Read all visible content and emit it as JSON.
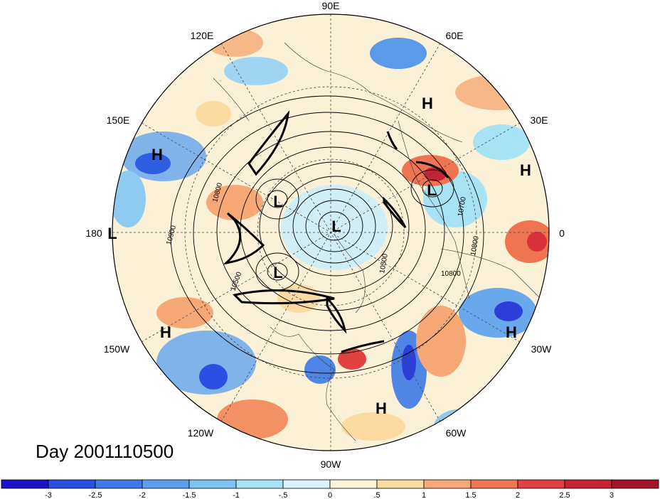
{
  "day_label": "Day 2001110500",
  "longitude_labels": [
    {
      "text": "90E",
      "lon": 90
    },
    {
      "text": "60E",
      "lon": 60
    },
    {
      "text": "120E",
      "lon": 120
    },
    {
      "text": "30E",
      "lon": 30
    },
    {
      "text": "150E",
      "lon": 150
    },
    {
      "text": "0",
      "lon": 0
    },
    {
      "text": "180",
      "lon": 180
    },
    {
      "text": "30W",
      "lon": -30
    },
    {
      "text": "150W",
      "lon": -150
    },
    {
      "text": "60W",
      "lon": -60
    },
    {
      "text": "120W",
      "lon": -120
    },
    {
      "text": "90W",
      "lon": -90
    }
  ],
  "pressure_centers": [
    {
      "type": "H",
      "text": "H"
    },
    {
      "type": "H",
      "text": "H"
    },
    {
      "type": "H",
      "text": "H"
    },
    {
      "type": "H",
      "text": "H"
    },
    {
      "type": "H",
      "text": "H"
    },
    {
      "type": "H",
      "text": "H"
    },
    {
      "type": "L",
      "text": "L"
    },
    {
      "type": "L",
      "text": "L"
    },
    {
      "type": "L",
      "text": "L"
    },
    {
      "type": "L",
      "text": "L"
    },
    {
      "type": "L",
      "text": "L"
    }
  ],
  "contour_labels": [
    "10800",
    "10900",
    "10500",
    "10700",
    "10800",
    "10800",
    "10500"
  ],
  "colorbar": {
    "tick_labels": [
      "-3",
      "-2.5",
      "-2",
      "-1.5",
      "-1",
      "-.5",
      "0",
      ".5",
      "1",
      "1.5",
      "2",
      "2.5",
      "3"
    ],
    "colors": [
      "#1a14c8",
      "#2b4fe0",
      "#3f7ae8",
      "#5aa0ec",
      "#7cc3f2",
      "#a7e2f5",
      "#d8f4f9",
      "#fbf5d8",
      "#fbdba1",
      "#f6a877",
      "#ef7552",
      "#e04141",
      "#c52434",
      "#a3142a"
    ]
  }
}
